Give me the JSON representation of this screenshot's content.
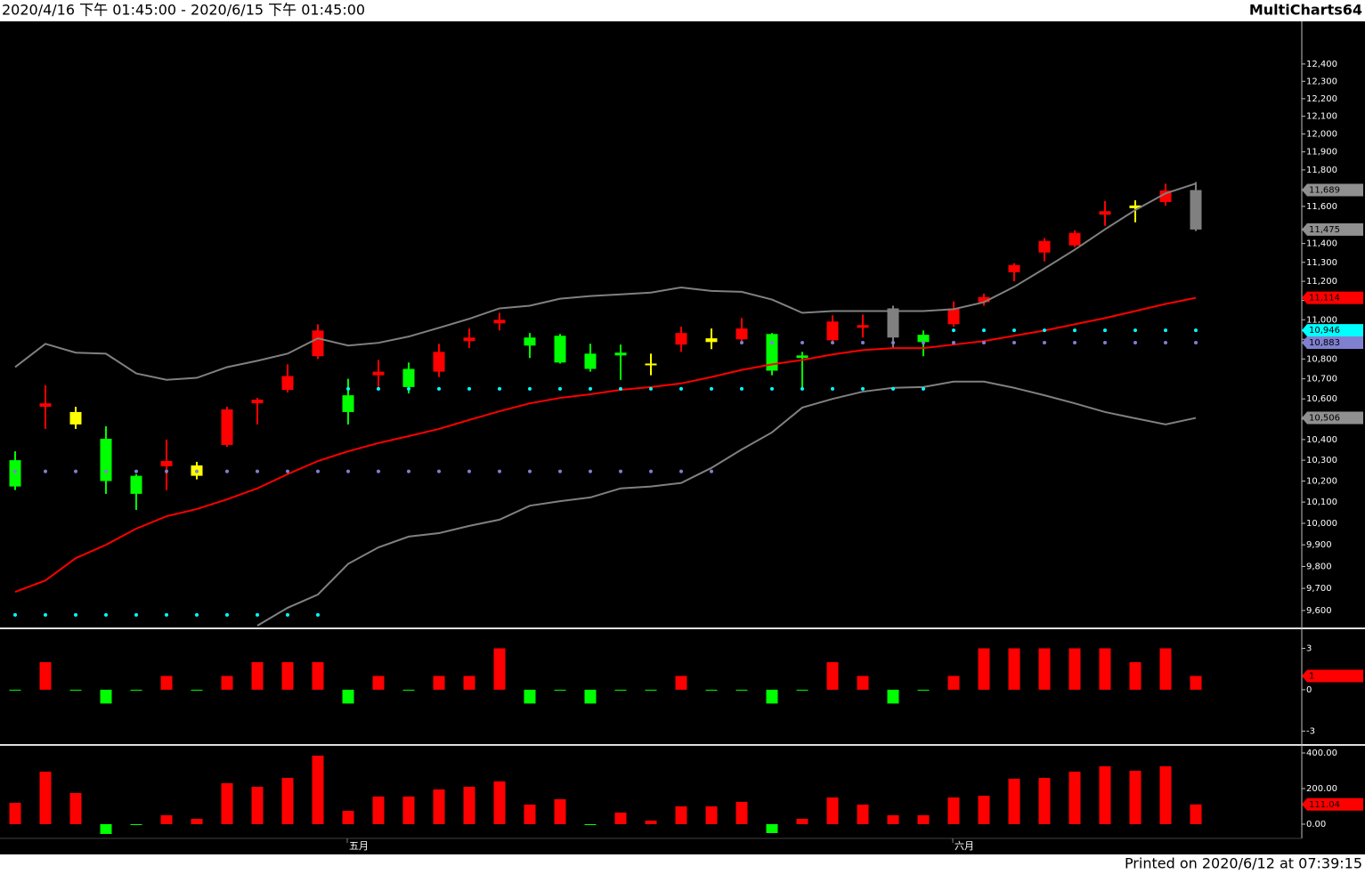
{
  "header": {
    "range": "2020/4/16 下午 01:45:00 - 2020/6/15 下午 01:45:00",
    "brand": "MultiCharts64"
  },
  "footer": {
    "printed": "Printed on 2020/6/12 at 07:39:15"
  },
  "chart_data": [
    {
      "type": "candlestick",
      "log_scale": true,
      "ylim": [
        9524,
        12650
      ],
      "yticks": [
        {
          "value": 12400,
          "label": "12,400"
        },
        {
          "value": 12300,
          "label": "12,300"
        },
        {
          "value": 12200,
          "label": "12,200"
        },
        {
          "value": 12100,
          "label": "12,100"
        },
        {
          "value": 12000,
          "label": "12,000"
        },
        {
          "value": 11900,
          "label": "11,900"
        },
        {
          "value": 11800,
          "label": "11,800"
        },
        {
          "value": 11600,
          "label": "11,600"
        },
        {
          "value": 11400,
          "label": "11,400"
        },
        {
          "value": 11300,
          "label": "11,300"
        },
        {
          "value": 11200,
          "label": "11,200"
        },
        {
          "value": 11100,
          "label": "11,100"
        },
        {
          "value": 11000,
          "label": "11,000"
        },
        {
          "value": 10900,
          "label": "10,900"
        },
        {
          "value": 10800,
          "label": "10,800"
        },
        {
          "value": 10700,
          "label": "10,700"
        },
        {
          "value": 10600,
          "label": "10,600"
        },
        {
          "value": 10500,
          "label": "10,500"
        },
        {
          "value": 10400,
          "label": "10,400"
        },
        {
          "value": 10300,
          "label": "10,300"
        },
        {
          "value": 10200,
          "label": "10,200"
        },
        {
          "value": 10100,
          "label": "10,100"
        },
        {
          "value": 10000,
          "label": "10,000"
        },
        {
          "value": 9900,
          "label": "9,900"
        },
        {
          "value": 9800,
          "label": "9,800"
        },
        {
          "value": 9700,
          "label": "9,700"
        },
        {
          "value": 9600,
          "label": "9,600"
        }
      ],
      "open": [
        10300,
        10561,
        10535,
        10404,
        10225,
        10271,
        10275,
        10374,
        10578,
        10645,
        10814,
        10618,
        10718,
        10750,
        10736,
        10891,
        10982,
        10909,
        10918,
        10827,
        10832,
        10777,
        10873,
        10905,
        10900,
        10927,
        10818,
        10895,
        10959,
        11059,
        10923,
        10977,
        11091,
        11248,
        11352,
        11390,
        11555,
        11605,
        11624,
        11689
      ],
      "high": [
        10343,
        10668,
        10561,
        10465,
        10233,
        10400,
        10292,
        10561,
        10605,
        10773,
        10977,
        10700,
        10795,
        10782,
        10877,
        10955,
        11036,
        10932,
        10927,
        10877,
        10873,
        10827,
        10964,
        10955,
        11009,
        10932,
        10836,
        11023,
        11027,
        11073,
        10945,
        11095,
        11136,
        11295,
        11429,
        11471,
        11629,
        11633,
        11724,
        11733
      ],
      "low": [
        10157,
        10452,
        10452,
        10139,
        10063,
        10157,
        10208,
        10365,
        10474,
        10632,
        10800,
        10474,
        10659,
        10627,
        10709,
        10855,
        10945,
        10805,
        10777,
        10736,
        10695,
        10718,
        10836,
        10850,
        10891,
        10718,
        10650,
        10891,
        10909,
        10855,
        10814,
        10964,
        11073,
        11200,
        11305,
        11381,
        11495,
        11514,
        11605,
        11467
      ],
      "close": [
        10174,
        10578,
        10474,
        10200,
        10139,
        10296,
        10225,
        10548,
        10596,
        10714,
        10945,
        10535,
        10736,
        10659,
        10836,
        10909,
        11000,
        10868,
        10782,
        10750,
        10818,
        10768,
        10932,
        10886,
        10955,
        10741,
        10805,
        10991,
        10973,
        10909,
        10886,
        11059,
        11118,
        11286,
        11414,
        11457,
        11574,
        11590,
        11686,
        11475
      ],
      "candle_colors": [
        "#00ff00",
        "#ff0000",
        "#ffff00",
        "#00ff00",
        "#00ff00",
        "#ff0000",
        "#ffff00",
        "#ff0000",
        "#ff0000",
        "#ff0000",
        "#ff0000",
        "#00ff00",
        "#ff0000",
        "#00ff00",
        "#ff0000",
        "#ff0000",
        "#ff0000",
        "#00ff00",
        "#00ff00",
        "#00ff00",
        "#00ff00",
        "#ffff00",
        "#ff0000",
        "#ffff00",
        "#ff0000",
        "#00ff00",
        "#00ff00",
        "#ff0000",
        "#ff0000",
        "#808080",
        "#00ff00",
        "#ff0000",
        "#ff0000",
        "#ff0000",
        "#ff0000",
        "#ff0000",
        "#ff0000",
        "#ffff00",
        "#ff0000",
        "#808080"
      ],
      "lines": [
        {
          "color": "#ff0000",
          "width": 2,
          "values": [
            9684,
            9736,
            9838,
            9900,
            9975,
            10033,
            10067,
            10113,
            10165,
            10233,
            10296,
            10343,
            10383,
            10417,
            10452,
            10496,
            10539,
            10578,
            10605,
            10623,
            10645,
            10659,
            10677,
            10709,
            10745,
            10773,
            10795,
            10823,
            10845,
            10855,
            10855,
            10873,
            10891,
            10918,
            10945,
            10977,
            11009,
            11045,
            11082,
            11114
          ]
        },
        {
          "color": "#808080",
          "width": 2,
          "values": [
            10759,
            10877,
            10832,
            10827,
            10727,
            10695,
            10705,
            10759,
            10791,
            10827,
            10905,
            10868,
            10882,
            10914,
            10959,
            11005,
            11059,
            11073,
            11109,
            11123,
            11132,
            11141,
            11168,
            11150,
            11145,
            11105,
            11036,
            11045,
            11045,
            11045,
            11045,
            11055,
            11091,
            11171,
            11267,
            11367,
            11476,
            11580,
            11671,
            11725
          ]
        },
        {
          "color": "#808080",
          "width": 2,
          "values": [
            null,
            null,
            null,
            null,
            null,
            null,
            null,
            null,
            9532,
            9612,
            9672,
            9812,
            9888,
            9938,
            9954,
            9988,
            10017,
            10083,
            10104,
            10122,
            10165,
            10174,
            10191,
            10263,
            10352,
            10435,
            10557,
            10600,
            10636,
            10655,
            10659,
            10686,
            10686,
            10655,
            10618,
            10578,
            10535,
            10504,
            10474,
            10506
          ]
        }
      ],
      "dots": [
        {
          "color": "#00ffff",
          "values": [
            9580,
            9580,
            9580,
            9580,
            9580,
            9580,
            9580,
            9580,
            9580,
            9580,
            9580,
            10650,
            10650,
            10650,
            10650,
            10650,
            10650,
            10650,
            10650,
            10650,
            10650,
            10650,
            10650,
            10650,
            10650,
            10650,
            10650,
            10650,
            10650,
            10650,
            10650,
            10946,
            10946,
            10946,
            10946,
            10946,
            10946,
            10946,
            10946,
            10946
          ]
        },
        {
          "color": "#8080d0",
          "values": [
            10246,
            10246,
            10246,
            10246,
            10246,
            10246,
            10246,
            10246,
            10246,
            10246,
            10246,
            10246,
            10246,
            10246,
            10246,
            10246,
            10246,
            10246,
            10246,
            10246,
            10246,
            10246,
            10246,
            10246,
            10883,
            10883,
            10883,
            10883,
            10883,
            10883,
            10883,
            10883,
            10883,
            10883,
            10883,
            10883,
            10883,
            10883,
            10883,
            10883
          ]
        }
      ],
      "last_labels": [
        {
          "value": 11689,
          "label": "11,689",
          "color": "#909090"
        },
        {
          "value": 11475,
          "label": "11,475",
          "color": "#909090"
        },
        {
          "value": 11114,
          "label": "11,114",
          "color": "#ff0000"
        },
        {
          "value": 10946,
          "label": "10,946",
          "color": "#00ffff"
        },
        {
          "value": 10883,
          "label": "10,883",
          "color": "#8080d0"
        },
        {
          "value": 10506,
          "label": "10,506",
          "color": "#909090"
        }
      ]
    },
    {
      "type": "bar",
      "ylim": [
        -3.94,
        4.32
      ],
      "yticks": [
        3,
        0,
        -3
      ],
      "up_color": "#ff0000",
      "down_color": "#00ff00",
      "values": [
        0,
        2,
        0,
        -1,
        0,
        1,
        0,
        1,
        2,
        2,
        2,
        -1,
        1,
        0,
        1,
        1,
        3,
        -1,
        0,
        -1,
        0,
        0,
        1,
        0,
        0,
        -1,
        0,
        2,
        1,
        -1,
        0,
        1,
        3,
        3,
        3,
        3,
        3,
        2,
        3,
        1
      ],
      "last_labels": [
        {
          "value": 1,
          "color": "#ff0000"
        }
      ]
    },
    {
      "type": "bar",
      "ylim": [
        -80,
        435
      ],
      "yticks": [
        {
          "value": 400,
          "label": "400.00"
        },
        {
          "value": 200,
          "label": "200.00"
        },
        {
          "value": 0,
          "label": "0.00"
        }
      ],
      "up_color": "#ff0000",
      "down_color": "#00ff00",
      "values": [
        120,
        295,
        175,
        -55,
        -5,
        50,
        30,
        230,
        210,
        260,
        385,
        75,
        155,
        155,
        195,
        210,
        240,
        110,
        140,
        0,
        65,
        20,
        100,
        100,
        125,
        -50,
        30,
        150,
        110,
        50,
        50,
        150,
        160,
        255,
        260,
        295,
        325,
        300,
        325,
        111.04
      ],
      "last_labels": [
        {
          "value": 111.04,
          "color": "#ff0000"
        }
      ],
      "categories": [
        null,
        null,
        null,
        null,
        null,
        null,
        null,
        null,
        null,
        null,
        null,
        "五月",
        null,
        null,
        null,
        null,
        null,
        null,
        null,
        null,
        null,
        null,
        null,
        null,
        null,
        null,
        null,
        null,
        null,
        null,
        null,
        "六月",
        null,
        null,
        null,
        null,
        null,
        null,
        null,
        null
      ]
    }
  ]
}
